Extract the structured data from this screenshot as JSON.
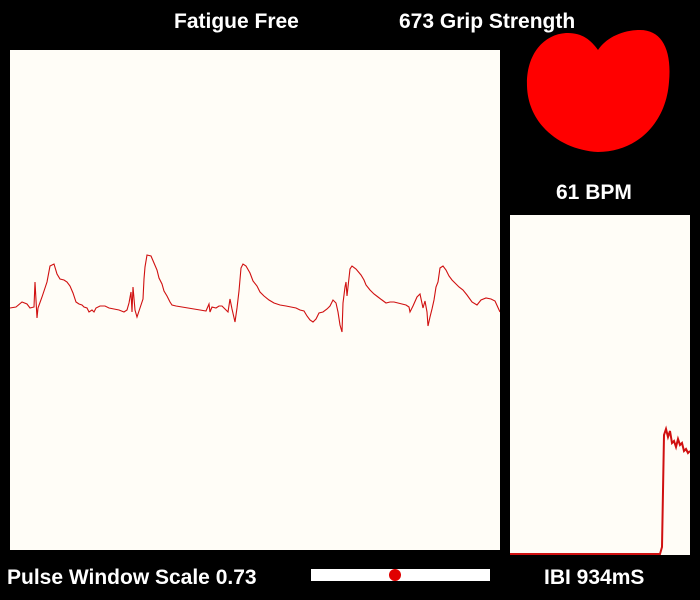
{
  "header": {
    "status_label": "Fatigue Free",
    "grip_label": "673 Grip Strength"
  },
  "heart": {
    "icon": "heart-icon",
    "color": "#ff0000",
    "bpm_label": "61 BPM"
  },
  "pulse_window": {
    "trace_color": "#d01010",
    "background": "#fffdf7"
  },
  "ibi_panel": {
    "label": "IBI 934mS",
    "trace_color": "#d01010"
  },
  "controls": {
    "scale_label": "Pulse Window Scale 0.73",
    "scale_slider_fraction": 0.47,
    "knob_color": "#e00000"
  }
}
